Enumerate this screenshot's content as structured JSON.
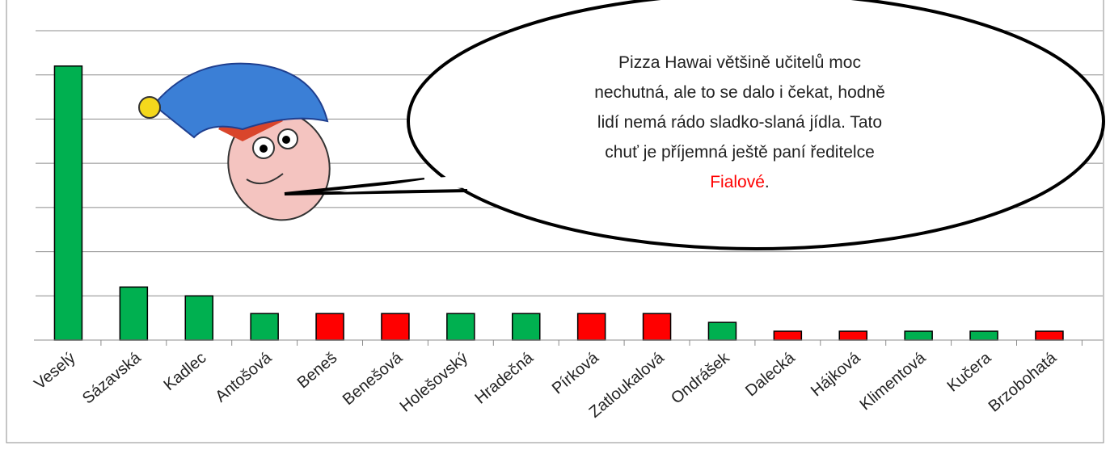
{
  "chart_data": {
    "type": "bar",
    "categories": [
      "Veselý",
      "Sázavská",
      "Kadlec",
      "Antošová",
      "Beneš",
      "Benešová",
      "Holešovský",
      "Hradečná",
      "Pírková",
      "Zatloukalová",
      "Ondrášek",
      "Dalecká",
      "Hájková",
      "Klimentová",
      "Kučera",
      "Brzobohatá"
    ],
    "values": [
      31,
      6,
      5,
      3,
      3,
      3,
      3,
      3,
      3,
      3,
      2,
      1,
      1,
      1,
      1,
      1
    ],
    "colors": [
      "#00b050",
      "#00b050",
      "#00b050",
      "#00b050",
      "#ff0000",
      "#ff0000",
      "#00b050",
      "#00b050",
      "#ff0000",
      "#ff0000",
      "#00b050",
      "#ff0000",
      "#ff0000",
      "#00b050",
      "#00b050",
      "#ff0000"
    ],
    "ylim": [
      0,
      35
    ],
    "yticks": [
      0,
      5,
      10,
      15,
      20,
      25,
      30,
      35
    ],
    "grid": true,
    "annotation": {
      "lines": [
        "Pizza Hawai většině učitelů moc",
        "nechutná, ale to se dalo i čekat, hodně",
        "lidí nemá rádo sladko-slaná jídla. Tato",
        "chuť je příjemná ještě paní ředitelce"
      ],
      "highlight": "Fialové",
      "highlight_color": "#ff0000",
      "end": "."
    }
  }
}
